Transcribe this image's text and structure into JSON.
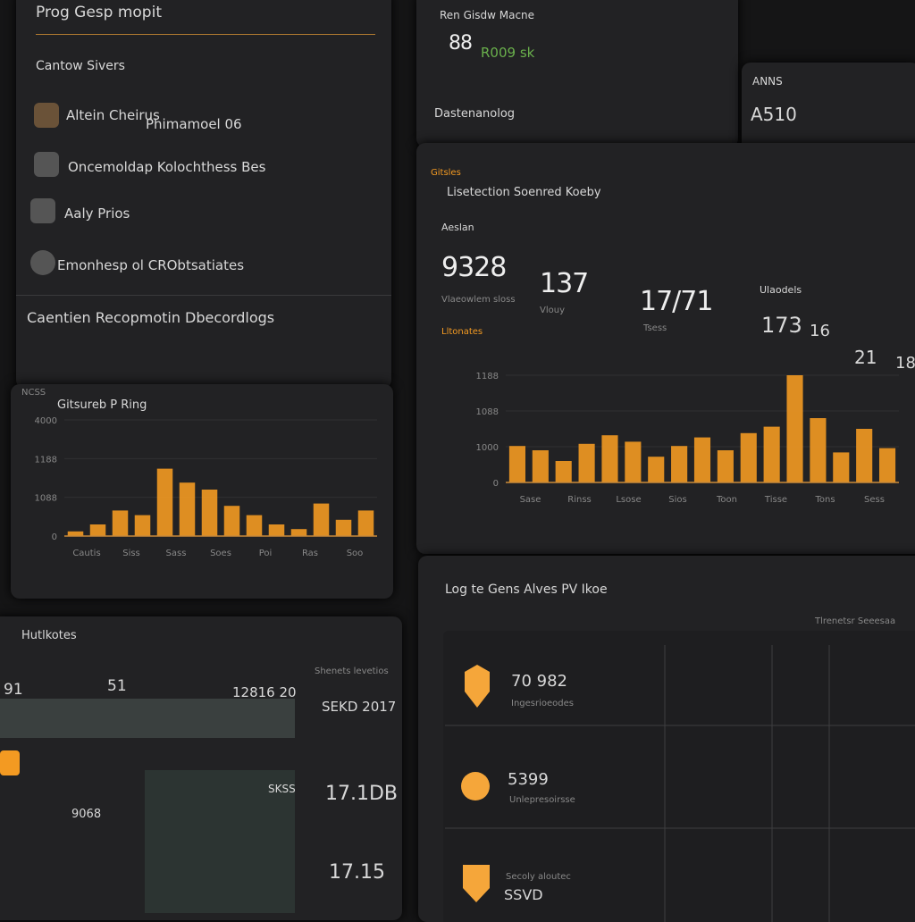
{
  "sidebar": {
    "title": "Prog Gesp mopit",
    "subtitle": "Cantow Sivers",
    "items": [
      {
        "label": "Altein Cheirus",
        "meta": "Phimamoel 06"
      },
      {
        "label": "Oncemoldap Kolochthess Bes"
      },
      {
        "label": "Aaly Prios"
      },
      {
        "label": "Emonhesp ol CRObtsatiates"
      }
    ],
    "footer": "Caentien Recopmotin Dbecordlogs"
  },
  "left_chart": {
    "type": "bar",
    "title": "Gitsureb P Ring",
    "corner": "NCSS",
    "yticks": [
      "4000",
      "1188",
      "1088",
      "0"
    ],
    "ylim": [
      0,
      100
    ],
    "values": [
      4,
      10,
      22,
      18,
      58,
      46,
      40,
      26,
      18,
      10,
      6,
      28,
      14,
      22
    ],
    "color": "#f39a22",
    "xlabels": [
      "Cautis",
      "Siss",
      "Sass",
      "Soes",
      "Poi",
      "Ras",
      "Soo"
    ]
  },
  "top_panel": {
    "title": "Ren Gisdw Macne",
    "big": "88",
    "delta": "R009 sk",
    "caption": "Dastenanolog"
  },
  "mini_panel": {
    "title": "ANNS",
    "value": "A510"
  },
  "main": {
    "tag": "Gitsles",
    "title": "Lisetection Soenred Koeby",
    "section": "Aeslan",
    "stats": [
      {
        "value": "9328",
        "caption": "Vlaeowlem sloss"
      },
      {
        "value": "137",
        "caption": "Vlouy"
      },
      {
        "value": "17/71",
        "caption": "Tsess"
      }
    ],
    "side_title": "Ulaodels",
    "side_stats": [
      "173",
      "16",
      "21",
      "18"
    ],
    "badge": "Lltonates",
    "chart": {
      "type": "bar",
      "yticks": [
        "1188",
        "1088",
        "1000",
        "0"
      ],
      "ylim": [
        0,
        100
      ],
      "values": [
        34,
        30,
        20,
        36,
        44,
        38,
        24,
        34,
        42,
        30,
        46,
        52,
        100,
        60,
        28,
        50,
        32
      ],
      "color": "#f39a22",
      "xlabels": [
        "Sase",
        "Rinss",
        "Lsose",
        "Sios",
        "Toon",
        "Tisse",
        "Tons",
        "Sess"
      ]
    }
  },
  "bottom_left": {
    "title": "Hutlkotes",
    "nums": [
      "91",
      "51",
      "12816 20"
    ],
    "side_title": "Shenets levetios",
    "side_values": [
      "SEKD 2017",
      "17.1DB",
      "17.15"
    ],
    "row_value": "9068",
    "row_tag": "SKSS"
  },
  "bottom_right": {
    "title": "Log te Gens Alves PV Ikoe",
    "corner": "Tlrenetsr Seeesaa",
    "rows": [
      {
        "value": "70 982",
        "caption": "Ingesrioeodes"
      },
      {
        "value": "5399",
        "caption": "Unlepresoirsse"
      },
      {
        "value": "SSVD",
        "caption": "Secoly aloutec"
      }
    ]
  }
}
